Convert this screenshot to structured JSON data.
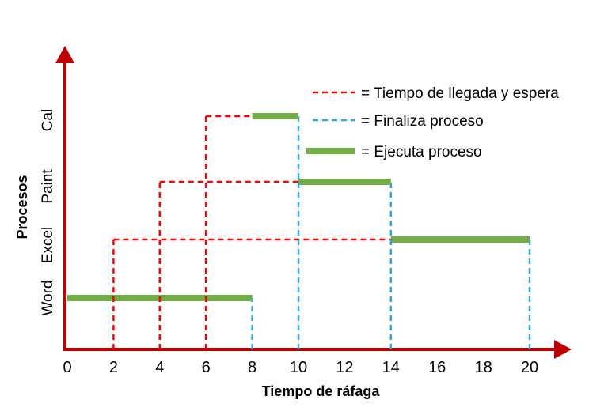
{
  "chart_data": {
    "type": "gantt",
    "xlabel": "Tiempo de ráfaga",
    "ylabel": "Procesos",
    "x_ticks": [
      "0",
      "2",
      "4",
      "6",
      "8",
      "10",
      "12",
      "14",
      "16",
      "18",
      "20"
    ],
    "categories": [
      "Word",
      "Excel",
      "Paint",
      "Cal"
    ],
    "processes": [
      {
        "name": "Word",
        "arrival": 0,
        "start": 0,
        "end": 8
      },
      {
        "name": "Excel",
        "arrival": 2,
        "start": 14,
        "end": 20
      },
      {
        "name": "Paint",
        "arrival": 4,
        "start": 10,
        "end": 14
      },
      {
        "name": "Cal",
        "arrival": 6,
        "start": 8,
        "end": 10
      }
    ],
    "legend": [
      {
        "key": "wait",
        "label": "= Tiempo de llegada y espera",
        "color": "#ff0000",
        "style": "dashed"
      },
      {
        "key": "finish",
        "label": "= Finaliza proceso",
        "color": "#29a8e0",
        "style": "dashed"
      },
      {
        "key": "exec",
        "label": "= Ejecuta proceso",
        "color": "#70ad47",
        "style": "solid"
      }
    ],
    "axis_color": "#c00000"
  }
}
